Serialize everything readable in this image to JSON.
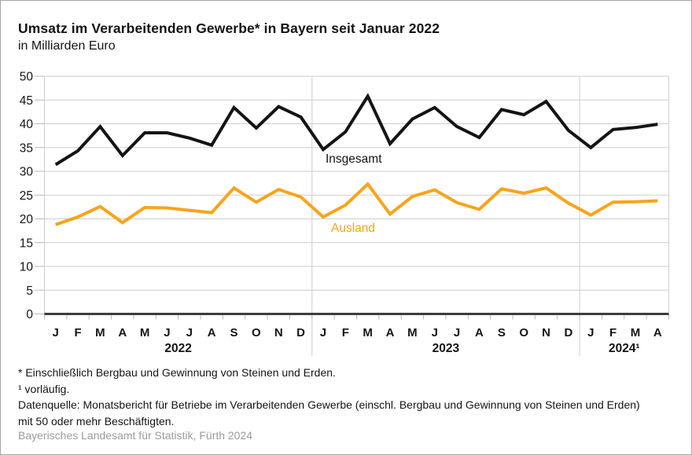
{
  "chart_data": {
    "type": "line",
    "title": "Umsatz im Verarbeitenden Gewerbe* in Bayern seit Januar 2022",
    "subtitle": "in Milliarden Euro",
    "ylim": [
      0,
      50
    ],
    "y_ticks": [
      0,
      5,
      10,
      15,
      20,
      25,
      30,
      35,
      40,
      45,
      50
    ],
    "grid": true,
    "legend_position": "inline-labels",
    "x_labels": [
      "J",
      "F",
      "M",
      "A",
      "M",
      "J",
      "J",
      "A",
      "S",
      "O",
      "N",
      "D",
      "J",
      "F",
      "M",
      "A",
      "M",
      "J",
      "J",
      "A",
      "S",
      "O",
      "N",
      "D",
      "J",
      "F",
      "M",
      "A"
    ],
    "year_groups": [
      {
        "label": "2022",
        "months": 12
      },
      {
        "label": "2023",
        "months": 12
      },
      {
        "label": "2024¹",
        "months": 4
      }
    ],
    "series": [
      {
        "name": "Insgesamt",
        "color": "#141414",
        "values": [
          31.4,
          34.3,
          39.4,
          33.3,
          38.1,
          38.1,
          37.0,
          35.5,
          43.4,
          39.1,
          43.6,
          41.4,
          34.6,
          38.3,
          45.8,
          35.8,
          41.0,
          43.4,
          39.4,
          37.1,
          43.0,
          41.9,
          44.7,
          38.6,
          35.0,
          38.8,
          39.2,
          39.9
        ]
      },
      {
        "name": "Ausland",
        "color": "#f7a41c",
        "values": [
          18.8,
          20.4,
          22.6,
          19.2,
          22.4,
          22.3,
          21.8,
          21.3,
          26.5,
          23.5,
          26.2,
          24.6,
          20.4,
          22.9,
          27.3,
          21.0,
          24.7,
          26.1,
          23.4,
          22.0,
          26.3,
          25.4,
          26.5,
          23.3,
          20.8,
          23.5,
          23.6,
          23.8
        ]
      }
    ],
    "axis_colors": {
      "grid": "#cdcdcd",
      "tick": "#b9b9b9",
      "zero_line": "#3d3d3d",
      "text": "#141414"
    }
  },
  "footnotes": [
    "* Einschließlich Bergbau und Gewinnung von Steinen und Erden.",
    "¹ vorläufig.",
    "Datenquelle: Monatsbericht für Betriebe im Verarbeitenden Gewerbe (einschl. Bergbau und Gewinnung von Steinen und Erden) mit 50 oder mehr Beschäftigten."
  ],
  "source": "Bayerisches Landesamt für Statistik, Fürth 2024"
}
